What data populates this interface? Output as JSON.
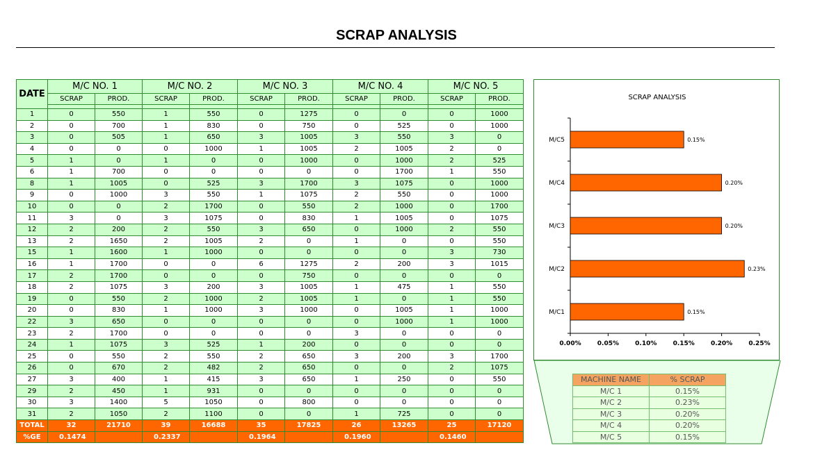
{
  "title": "SCRAP ANALYSIS",
  "table": {
    "date_header": "DATE",
    "machines": [
      "M/C NO. 1",
      "M/C NO. 2",
      "M/C NO. 3",
      "M/C NO. 4",
      "M/C NO. 5"
    ],
    "sub_headers": [
      "SCRAP",
      "PROD."
    ],
    "rows": [
      [
        "1",
        "0",
        "550",
        "1",
        "550",
        "0",
        "1275",
        "0",
        "0",
        "0",
        "1000"
      ],
      [
        "2",
        "0",
        "700",
        "1",
        "830",
        "0",
        "750",
        "0",
        "525",
        "0",
        "1000"
      ],
      [
        "3",
        "0",
        "505",
        "1",
        "650",
        "3",
        "1005",
        "3",
        "550",
        "3",
        "0"
      ],
      [
        "4",
        "0",
        "0",
        "0",
        "1000",
        "1",
        "1005",
        "2",
        "1005",
        "2",
        "0"
      ],
      [
        "5",
        "1",
        "0",
        "1",
        "0",
        "0",
        "1000",
        "0",
        "1000",
        "2",
        "525"
      ],
      [
        "6",
        "1",
        "700",
        "0",
        "0",
        "0",
        "0",
        "0",
        "1700",
        "1",
        "550"
      ],
      [
        "8",
        "1",
        "1005",
        "0",
        "525",
        "3",
        "1700",
        "3",
        "1075",
        "0",
        "1000"
      ],
      [
        "9",
        "0",
        "1000",
        "3",
        "550",
        "1",
        "1075",
        "2",
        "550",
        "0",
        "1000"
      ],
      [
        "10",
        "0",
        "0",
        "2",
        "1700",
        "0",
        "550",
        "2",
        "1000",
        "0",
        "1700"
      ],
      [
        "11",
        "3",
        "0",
        "3",
        "1075",
        "0",
        "830",
        "1",
        "1005",
        "0",
        "1075"
      ],
      [
        "12",
        "2",
        "200",
        "2",
        "550",
        "3",
        "650",
        "0",
        "1000",
        "2",
        "550"
      ],
      [
        "13",
        "2",
        "1650",
        "2",
        "1005",
        "2",
        "0",
        "1",
        "0",
        "0",
        "550"
      ],
      [
        "15",
        "1",
        "1600",
        "1",
        "1000",
        "0",
        "0",
        "0",
        "0",
        "3",
        "730"
      ],
      [
        "16",
        "1",
        "1700",
        "0",
        "0",
        "6",
        "1275",
        "2",
        "200",
        "3",
        "1015"
      ],
      [
        "17",
        "2",
        "1700",
        "0",
        "0",
        "0",
        "750",
        "0",
        "0",
        "0",
        "0"
      ],
      [
        "18",
        "2",
        "1075",
        "3",
        "200",
        "3",
        "1005",
        "1",
        "475",
        "1",
        "550"
      ],
      [
        "19",
        "0",
        "550",
        "2",
        "1000",
        "2",
        "1005",
        "1",
        "0",
        "1",
        "550"
      ],
      [
        "20",
        "0",
        "830",
        "1",
        "1000",
        "3",
        "1000",
        "0",
        "1005",
        "1",
        "1000"
      ],
      [
        "22",
        "3",
        "650",
        "0",
        "0",
        "0",
        "0",
        "0",
        "1000",
        "1",
        "1000"
      ],
      [
        "23",
        "2",
        "1700",
        "0",
        "0",
        "0",
        "0",
        "3",
        "0",
        "0",
        "0"
      ],
      [
        "24",
        "1",
        "1075",
        "3",
        "525",
        "1",
        "200",
        "0",
        "0",
        "0",
        "0"
      ],
      [
        "25",
        "0",
        "550",
        "2",
        "550",
        "2",
        "650",
        "3",
        "200",
        "3",
        "1700"
      ],
      [
        "26",
        "0",
        "670",
        "2",
        "482",
        "2",
        "650",
        "0",
        "0",
        "2",
        "1075"
      ],
      [
        "27",
        "3",
        "400",
        "1",
        "415",
        "3",
        "650",
        "1",
        "250",
        "0",
        "550"
      ],
      [
        "29",
        "2",
        "450",
        "1",
        "931",
        "0",
        "0",
        "0",
        "0",
        "0",
        "0"
      ],
      [
        "30",
        "3",
        "1400",
        "5",
        "1050",
        "0",
        "800",
        "0",
        "0",
        "0",
        "0"
      ],
      [
        "31",
        "2",
        "1050",
        "2",
        "1100",
        "0",
        "0",
        "1",
        "725",
        "0",
        "0"
      ]
    ],
    "total": [
      "TOTAL",
      "32",
      "21710",
      "39",
      "16688",
      "35",
      "17825",
      "26",
      "13265",
      "25",
      "17120"
    ],
    "pct": [
      "%GE",
      "0.1474",
      "",
      "0.2337",
      "",
      "0.1964",
      "",
      "0.1960",
      "",
      "0.1460",
      ""
    ]
  },
  "chart_data": {
    "type": "bar",
    "orientation": "horizontal",
    "title": "SCRAP ANALYSIS",
    "categories": [
      "M/C1",
      "M/C2",
      "M/C3",
      "M/C4",
      "M/C5"
    ],
    "values": [
      0.15,
      0.23,
      0.2,
      0.2,
      0.15
    ],
    "value_labels": [
      "0.15%",
      "0.23%",
      "0.20%",
      "0.20%",
      "0.15%"
    ],
    "xlim": [
      0,
      0.25
    ],
    "xticks": [
      "0.00%",
      "0.05%",
      "0.10%",
      "0.15%",
      "0.20%",
      "0.25%"
    ],
    "bar_color": "#ff6600",
    "grid": false,
    "legend": "none"
  },
  "summary": {
    "headers": [
      "MACHINE NAME",
      "% SCRAP"
    ],
    "rows": [
      [
        "M/C 1",
        "0.15%"
      ],
      [
        "M/C 2",
        "0.23%"
      ],
      [
        "M/C 3",
        "0.20%"
      ],
      [
        "M/C 4",
        "0.20%"
      ],
      [
        "M/C 5",
        "0.15%"
      ]
    ]
  },
  "colors": {
    "header_green": "#ccffcc",
    "orange": "#ff6600",
    "border_green": "#2e8b2e",
    "summary_header": "#f4a460"
  }
}
